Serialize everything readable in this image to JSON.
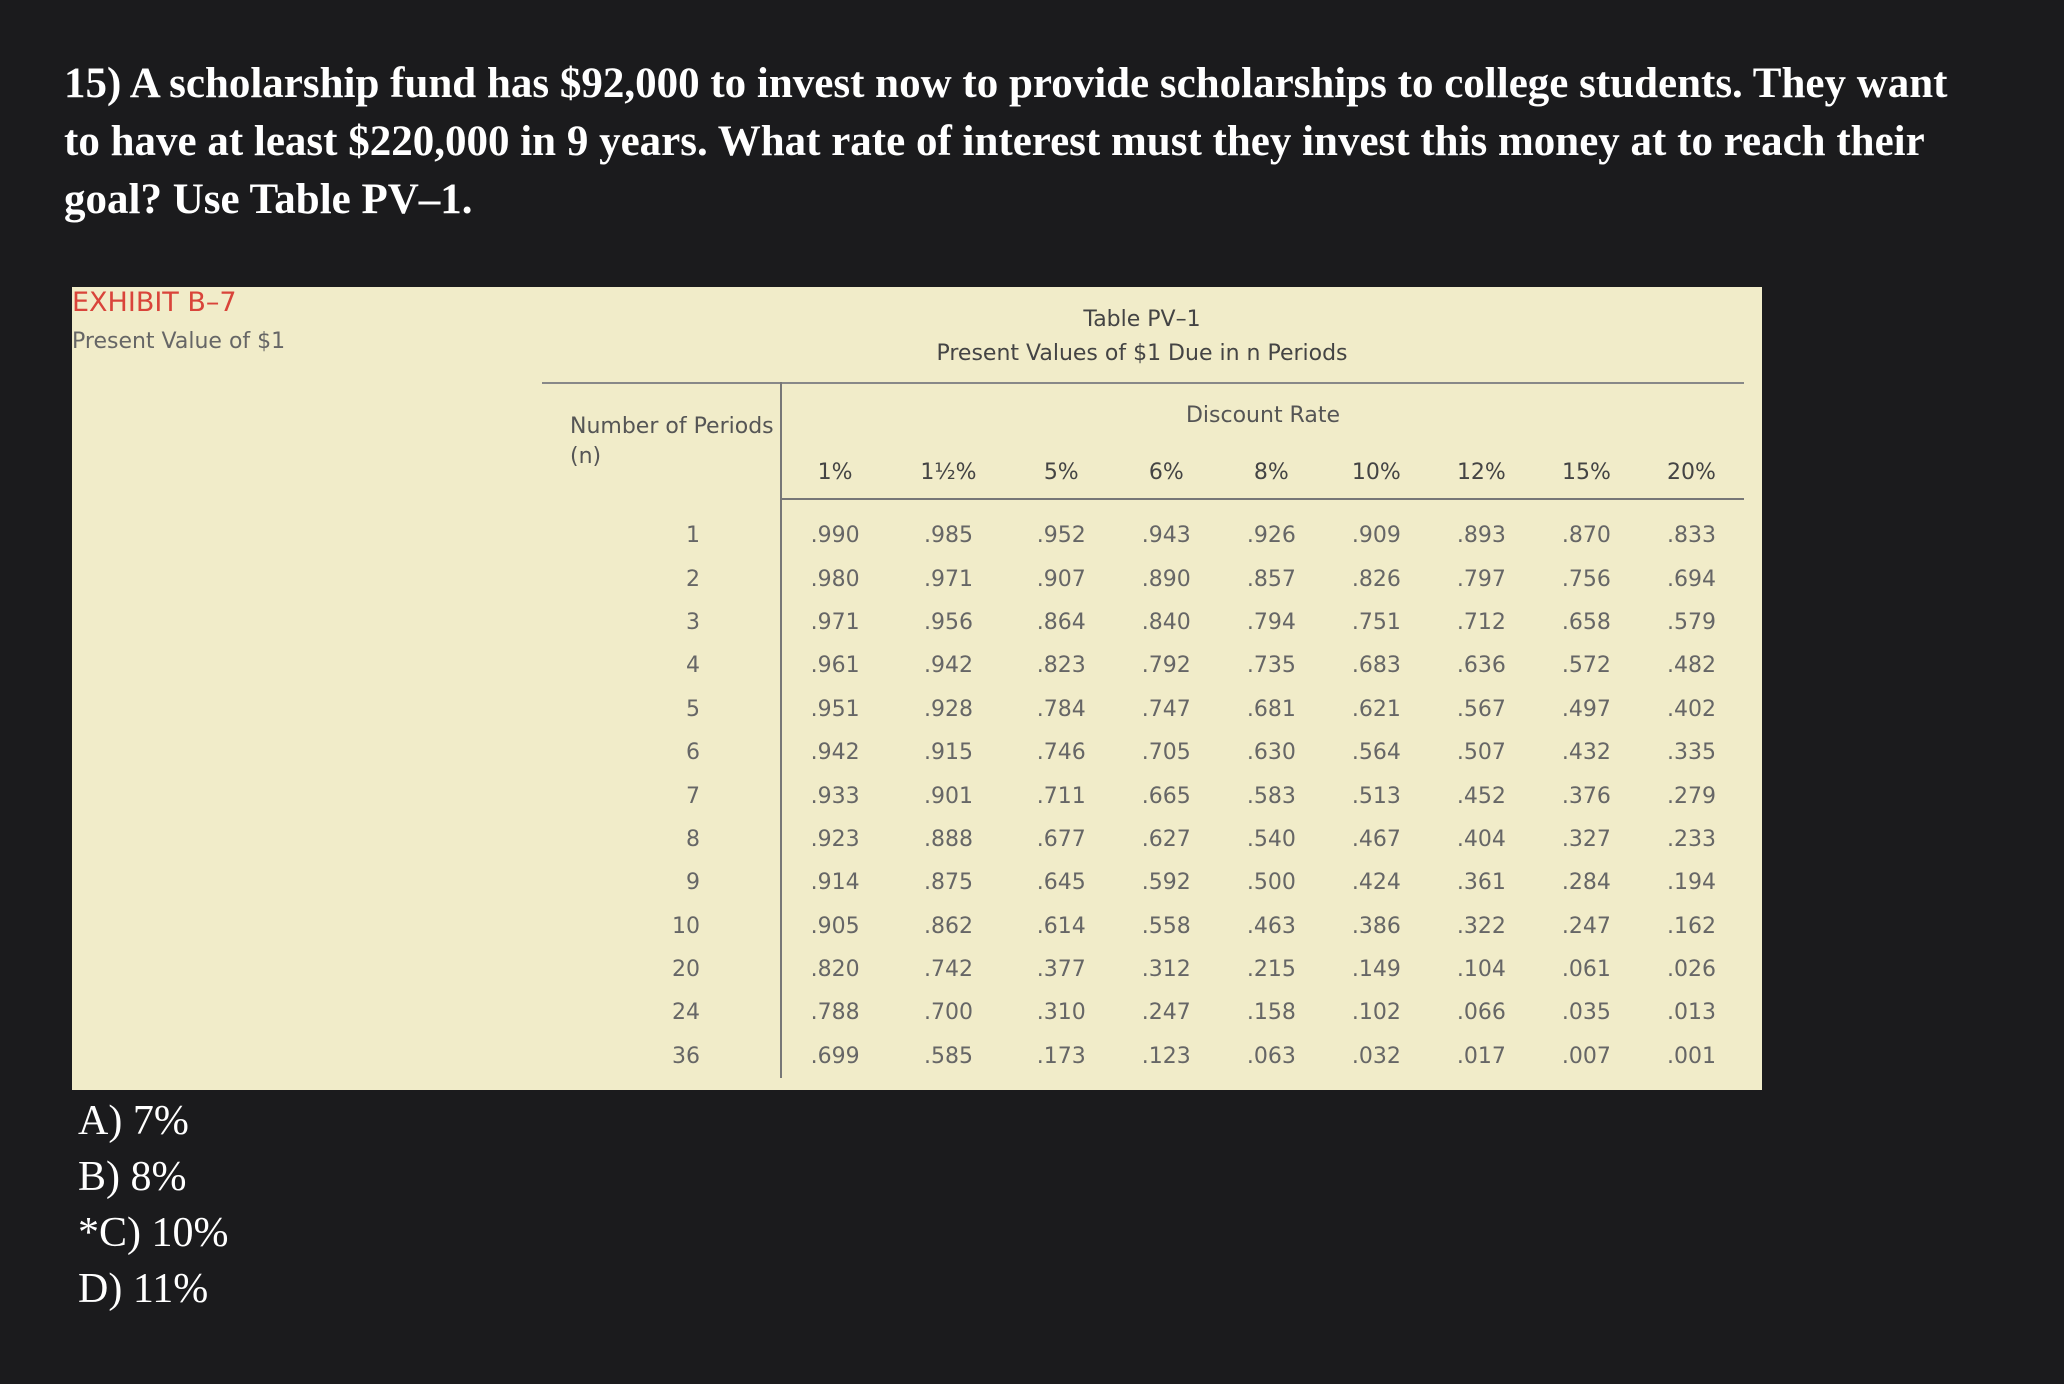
{
  "question": {
    "text": "15) A scholarship fund has $92,000 to invest now to provide scholarships to college students. They want to have at least $220,000 in 9 years. What rate of interest must they invest this money at to reach their goal? Use Table PV–1."
  },
  "exhibit": {
    "label": "EXHIBIT B–7",
    "subtitle": "Present Value of $1"
  },
  "table": {
    "title": "Table PV–1",
    "subtitle": "Present Values of $1 Due in n Periods",
    "row_header": "Number of Periods (n)",
    "group_header": "Discount Rate",
    "columns": [
      "1%",
      "1½%",
      "5%",
      "6%",
      "8%",
      "10%",
      "12%",
      "15%",
      "20%"
    ],
    "rows": [
      {
        "period": "1",
        "values": [
          ".990",
          ".985",
          ".952",
          ".943",
          ".926",
          ".909",
          ".893",
          ".870",
          ".833"
        ]
      },
      {
        "period": "2",
        "values": [
          ".980",
          ".971",
          ".907",
          ".890",
          ".857",
          ".826",
          ".797",
          ".756",
          ".694"
        ]
      },
      {
        "period": "3",
        "values": [
          ".971",
          ".956",
          ".864",
          ".840",
          ".794",
          ".751",
          ".712",
          ".658",
          ".579"
        ]
      },
      {
        "period": "4",
        "values": [
          ".961",
          ".942",
          ".823",
          ".792",
          ".735",
          ".683",
          ".636",
          ".572",
          ".482"
        ]
      },
      {
        "period": "5",
        "values": [
          ".951",
          ".928",
          ".784",
          ".747",
          ".681",
          ".621",
          ".567",
          ".497",
          ".402"
        ]
      },
      {
        "period": "6",
        "values": [
          ".942",
          ".915",
          ".746",
          ".705",
          ".630",
          ".564",
          ".507",
          ".432",
          ".335"
        ]
      },
      {
        "period": "7",
        "values": [
          ".933",
          ".901",
          ".711",
          ".665",
          ".583",
          ".513",
          ".452",
          ".376",
          ".279"
        ]
      },
      {
        "period": "8",
        "values": [
          ".923",
          ".888",
          ".677",
          ".627",
          ".540",
          ".467",
          ".404",
          ".327",
          ".233"
        ]
      },
      {
        "period": "9",
        "values": [
          ".914",
          ".875",
          ".645",
          ".592",
          ".500",
          ".424",
          ".361",
          ".284",
          ".194"
        ]
      },
      {
        "period": "10",
        "values": [
          ".905",
          ".862",
          ".614",
          ".558",
          ".463",
          ".386",
          ".322",
          ".247",
          ".162"
        ]
      },
      {
        "period": "20",
        "values": [
          ".820",
          ".742",
          ".377",
          ".312",
          ".215",
          ".149",
          ".104",
          ".061",
          ".026"
        ]
      },
      {
        "period": "24",
        "values": [
          ".788",
          ".700",
          ".310",
          ".247",
          ".158",
          ".102",
          ".066",
          ".035",
          ".013"
        ]
      },
      {
        "period": "36",
        "values": [
          ".699",
          ".585",
          ".173",
          ".123",
          ".063",
          ".032",
          ".017",
          ".007",
          ".001"
        ]
      }
    ]
  },
  "answers": [
    "A) 7%",
    "B) 8%",
    "*C) 10%",
    "D) 11%"
  ]
}
